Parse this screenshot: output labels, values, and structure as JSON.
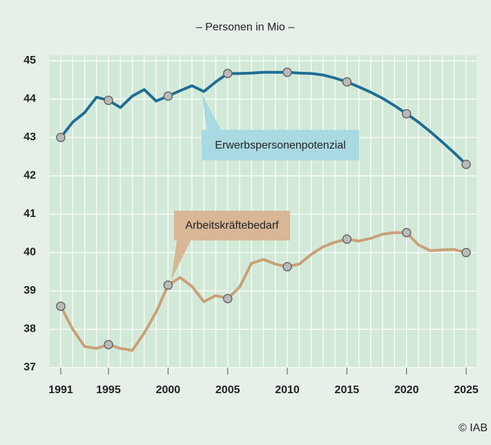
{
  "chart_data": {
    "type": "line",
    "subtitle": "– Personen in Mio –",
    "source": "© IAB",
    "x": [
      1991,
      1992,
      1993,
      1994,
      1995,
      1996,
      1997,
      1998,
      1999,
      2000,
      2001,
      2002,
      2003,
      2004,
      2005,
      2006,
      2007,
      2008,
      2009,
      2010,
      2011,
      2012,
      2013,
      2014,
      2015,
      2016,
      2017,
      2018,
      2019,
      2020,
      2021,
      2022,
      2023,
      2024,
      2025
    ],
    "series": [
      {
        "name": "Erwerbspersonenpotenzial",
        "color": "#1f6e94",
        "values": [
          43.0,
          43.4,
          43.65,
          44.05,
          43.97,
          43.78,
          44.08,
          44.25,
          43.95,
          44.08,
          44.22,
          44.35,
          44.2,
          44.45,
          44.67,
          44.67,
          44.68,
          44.7,
          44.7,
          44.7,
          44.68,
          44.67,
          44.63,
          44.55,
          44.45,
          44.32,
          44.18,
          44.02,
          43.83,
          43.62,
          43.4,
          43.15,
          42.88,
          42.6,
          42.3
        ]
      },
      {
        "name": "Arbeitskräftebedarf",
        "color": "#c9a078",
        "values": [
          38.6,
          38.0,
          37.55,
          37.5,
          37.6,
          37.5,
          37.45,
          37.9,
          38.45,
          39.15,
          39.35,
          39.12,
          38.72,
          38.88,
          38.8,
          39.1,
          39.72,
          39.82,
          39.7,
          39.63,
          39.7,
          39.95,
          40.15,
          40.27,
          40.35,
          40.3,
          40.37,
          40.48,
          40.52,
          40.52,
          40.2,
          40.05,
          40.07,
          40.08,
          40.0
        ]
      }
    ],
    "xlim": [
      1991,
      2025
    ],
    "xticks": [
      1991,
      1995,
      2000,
      2005,
      2010,
      2015,
      2020,
      2025
    ],
    "ylim": [
      37,
      45
    ],
    "yticks": [
      37,
      38,
      39,
      40,
      41,
      42,
      43,
      44,
      45
    ],
    "grid": true
  }
}
